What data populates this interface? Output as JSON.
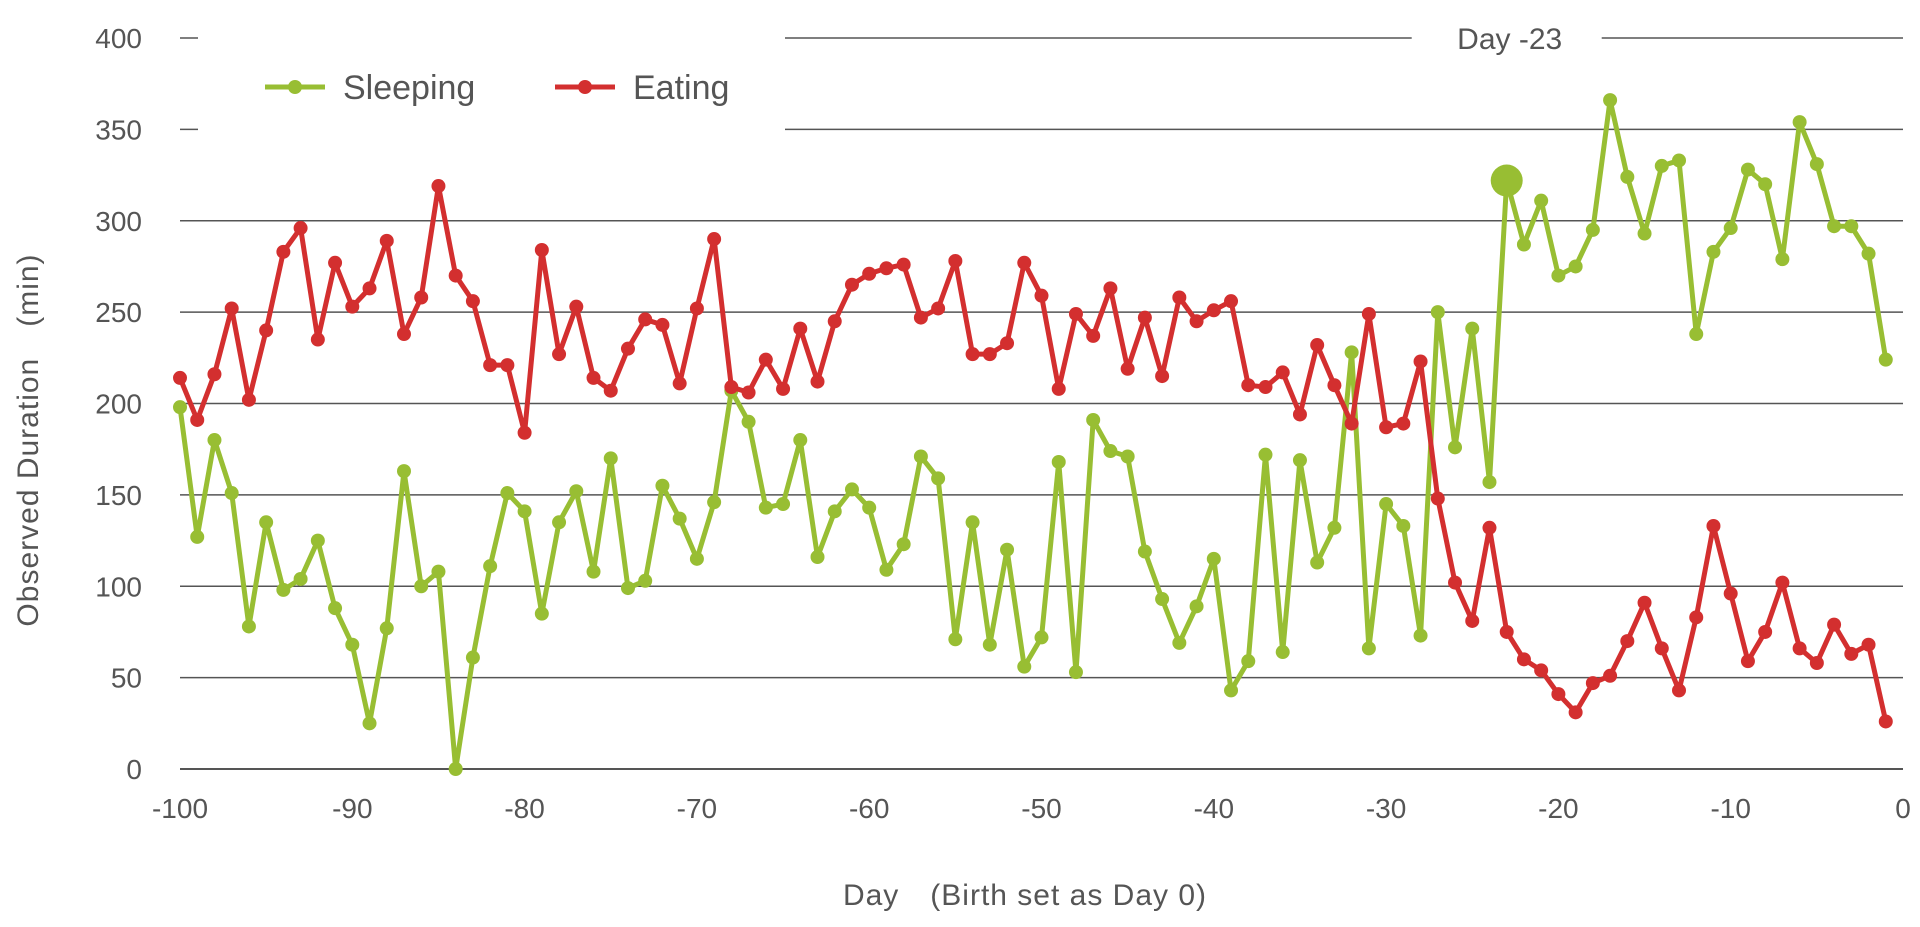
{
  "chart_data": {
    "type": "line",
    "title": "",
    "xlabel": "Day　(Birth set as Day 0)",
    "ylabel": "Observed Duration　(min)",
    "xlim": [
      -100,
      0
    ],
    "ylim": [
      0,
      400
    ],
    "xticks": [
      "-100",
      "-90",
      "-80",
      "-70",
      "-60",
      "-50",
      "-40",
      "-30",
      "-20",
      "-10",
      "0"
    ],
    "yticks": [
      "0",
      "50",
      "100",
      "150",
      "200",
      "250",
      "300",
      "350",
      "400"
    ],
    "grid": true,
    "legend_position": "top-left",
    "annotation": {
      "label": "Day -23",
      "x": -23,
      "highlight_series": "Sleeping",
      "highlight_value": 322
    },
    "x": [
      -100,
      -99,
      -98,
      -97,
      -96,
      -95,
      -94,
      -93,
      -92,
      -91,
      -90,
      -89,
      -88,
      -87,
      -86,
      -85,
      -84,
      -83,
      -82,
      -81,
      -80,
      -79,
      -78,
      -77,
      -76,
      -75,
      -74,
      -73,
      -72,
      -71,
      -70,
      -69,
      -68,
      -67,
      -66,
      -65,
      -64,
      -63,
      -62,
      -61,
      -60,
      -59,
      -58,
      -57,
      -56,
      -55,
      -54,
      -53,
      -52,
      -51,
      -50,
      -49,
      -48,
      -47,
      -46,
      -45,
      -44,
      -43,
      -42,
      -41,
      -40,
      -39,
      -38,
      -37,
      -36,
      -35,
      -34,
      -33,
      -32,
      -31,
      -30,
      -29,
      -28,
      -27,
      -26,
      -25,
      -24,
      -23,
      -22,
      -21,
      -20,
      -19,
      -18,
      -17,
      -16,
      -15,
      -14,
      -13,
      -12,
      -11,
      -10,
      -9,
      -8,
      -7,
      -6,
      -5,
      -4,
      -3,
      -2,
      -1
    ],
    "series": [
      {
        "name": "Sleeping",
        "color": "#98BE33",
        "values": [
          198,
          127,
          180,
          151,
          78,
          135,
          98,
          104,
          125,
          88,
          68,
          25,
          77,
          163,
          100,
          108,
          0,
          61,
          111,
          151,
          141,
          85,
          135,
          152,
          108,
          170,
          99,
          103,
          155,
          137,
          115,
          146,
          207,
          190,
          143,
          145,
          180,
          116,
          141,
          153,
          143,
          109,
          123,
          171,
          159,
          71,
          135,
          68,
          120,
          56,
          72,
          168,
          53,
          191,
          174,
          171,
          119,
          93,
          69,
          89,
          115,
          43,
          59,
          172,
          64,
          169,
          113,
          132,
          228,
          66,
          145,
          133,
          73,
          250,
          176,
          241,
          157,
          322,
          287,
          311,
          270,
          275,
          295,
          366,
          324,
          293,
          330,
          333,
          238,
          283,
          296,
          328,
          320,
          279,
          354,
          331,
          297,
          297,
          282,
          224
        ]
      },
      {
        "name": "Eating",
        "color": "#D32F2F",
        "values": [
          214,
          191,
          216,
          252,
          202,
          240,
          283,
          296,
          235,
          277,
          253,
          263,
          289,
          238,
          258,
          319,
          270,
          256,
          221,
          221,
          184,
          284,
          227,
          253,
          214,
          207,
          230,
          246,
          243,
          211,
          252,
          290,
          209,
          206,
          224,
          208,
          241,
          212,
          245,
          265,
          271,
          274,
          276,
          247,
          252,
          278,
          227,
          227,
          233,
          277,
          259,
          208,
          249,
          237,
          263,
          219,
          247,
          215,
          258,
          245,
          251,
          256,
          210,
          209,
          217,
          194,
          232,
          210,
          189,
          249,
          187,
          189,
          223,
          148,
          102,
          81,
          132,
          75,
          60,
          54,
          41,
          31,
          47,
          51,
          70,
          91,
          66,
          43,
          83,
          133,
          96,
          59,
          75,
          102,
          66,
          58,
          79,
          63,
          68,
          26
        ]
      }
    ]
  }
}
